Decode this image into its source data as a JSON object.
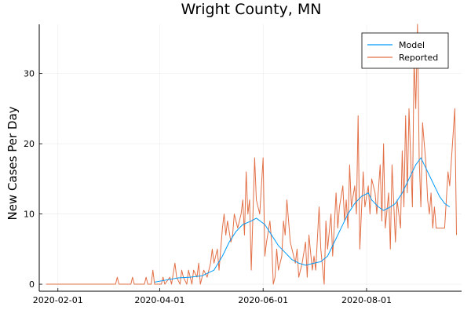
{
  "chart_data": {
    "type": "line",
    "title": "Wright County, MN",
    "xlabel": "",
    "ylabel": "New Cases Per Day",
    "xlim": [
      "2020-01-21",
      "2020-09-26"
    ],
    "ylim": [
      -1,
      37
    ],
    "x_ticks": [
      "2020-02-01",
      "2020-04-01",
      "2020-06-01",
      "2020-08-01"
    ],
    "y_ticks": [
      0,
      10,
      20,
      30
    ],
    "grid": true,
    "legend_position": "top-right",
    "series": [
      {
        "name": "Model",
        "color": "#009AF9",
        "points": [
          [
            "2020-03-29",
            0.3
          ],
          [
            "2020-04-05",
            0.6
          ],
          [
            "2020-04-12",
            0.9
          ],
          [
            "2020-04-19",
            1.0
          ],
          [
            "2020-04-26",
            1.2
          ],
          [
            "2020-05-03",
            2.0
          ],
          [
            "2020-05-08",
            4.0
          ],
          [
            "2020-05-12",
            6.0
          ],
          [
            "2020-05-16",
            7.5
          ],
          [
            "2020-05-20",
            8.5
          ],
          [
            "2020-05-25",
            9.0
          ],
          [
            "2020-05-28",
            9.4
          ],
          [
            "2020-06-02",
            8.5
          ],
          [
            "2020-06-06",
            7.0
          ],
          [
            "2020-06-10",
            5.5
          ],
          [
            "2020-06-14",
            4.5
          ],
          [
            "2020-06-18",
            3.5
          ],
          [
            "2020-06-22",
            3.0
          ],
          [
            "2020-06-26",
            2.7
          ],
          [
            "2020-07-01",
            3.0
          ],
          [
            "2020-07-05",
            3.2
          ],
          [
            "2020-07-09",
            4.0
          ],
          [
            "2020-07-13",
            6.0
          ],
          [
            "2020-07-17",
            8.0
          ],
          [
            "2020-07-21",
            10.0
          ],
          [
            "2020-07-25",
            11.5
          ],
          [
            "2020-07-29",
            12.5
          ],
          [
            "2020-08-02",
            13.0
          ],
          [
            "2020-08-04",
            12.0
          ],
          [
            "2020-08-08",
            11.0
          ],
          [
            "2020-08-11",
            10.5
          ],
          [
            "2020-08-15",
            11.0
          ],
          [
            "2020-08-18",
            11.5
          ],
          [
            "2020-08-22",
            13.0
          ],
          [
            "2020-08-26",
            15.0
          ],
          [
            "2020-08-30",
            17.0
          ],
          [
            "2020-09-02",
            18.0
          ],
          [
            "2020-09-04",
            17.0
          ],
          [
            "2020-09-07",
            15.5
          ],
          [
            "2020-09-10",
            14.0
          ],
          [
            "2020-09-13",
            12.5
          ],
          [
            "2020-09-16",
            11.5
          ],
          [
            "2020-09-19",
            11.0
          ]
        ]
      },
      {
        "name": "Reported",
        "color": "#E26F46",
        "points": [
          [
            "2020-01-25",
            0
          ],
          [
            "2020-03-06",
            0
          ],
          [
            "2020-03-07",
            1
          ],
          [
            "2020-03-08",
            0
          ],
          [
            "2020-03-15",
            0
          ],
          [
            "2020-03-16",
            1
          ],
          [
            "2020-03-17",
            0
          ],
          [
            "2020-03-23",
            0
          ],
          [
            "2020-03-24",
            1
          ],
          [
            "2020-03-25",
            0
          ],
          [
            "2020-03-27",
            0
          ],
          [
            "2020-03-28",
            2
          ],
          [
            "2020-03-29",
            0
          ],
          [
            "2020-04-02",
            0
          ],
          [
            "2020-04-03",
            1
          ],
          [
            "2020-04-04",
            0
          ],
          [
            "2020-04-07",
            1
          ],
          [
            "2020-04-08",
            0
          ],
          [
            "2020-04-10",
            3
          ],
          [
            "2020-04-11",
            1
          ],
          [
            "2020-04-13",
            0
          ],
          [
            "2020-04-14",
            2
          ],
          [
            "2020-04-15",
            1
          ],
          [
            "2020-04-17",
            0
          ],
          [
            "2020-04-18",
            2
          ],
          [
            "2020-04-20",
            0
          ],
          [
            "2020-04-21",
            2
          ],
          [
            "2020-04-23",
            1
          ],
          [
            "2020-04-24",
            3
          ],
          [
            "2020-04-25",
            0
          ],
          [
            "2020-04-27",
            2
          ],
          [
            "2020-04-29",
            1
          ],
          [
            "2020-05-01",
            3
          ],
          [
            "2020-05-02",
            5
          ],
          [
            "2020-05-03",
            3
          ],
          [
            "2020-05-05",
            5
          ],
          [
            "2020-05-06",
            2
          ],
          [
            "2020-05-08",
            8
          ],
          [
            "2020-05-09",
            10
          ],
          [
            "2020-05-10",
            7
          ],
          [
            "2020-05-11",
            9
          ],
          [
            "2020-05-13",
            6
          ],
          [
            "2020-05-14",
            7
          ],
          [
            "2020-05-15",
            10
          ],
          [
            "2020-05-17",
            8
          ],
          [
            "2020-05-19",
            10
          ],
          [
            "2020-05-20",
            12
          ],
          [
            "2020-05-21",
            7
          ],
          [
            "2020-05-22",
            16
          ],
          [
            "2020-05-23",
            10
          ],
          [
            "2020-05-24",
            12
          ],
          [
            "2020-05-25",
            2
          ],
          [
            "2020-05-27",
            18
          ],
          [
            "2020-05-28",
            12
          ],
          [
            "2020-05-30",
            10
          ],
          [
            "2020-05-31",
            14
          ],
          [
            "2020-06-01",
            18
          ],
          [
            "2020-06-02",
            4
          ],
          [
            "2020-06-03",
            6
          ],
          [
            "2020-06-05",
            9
          ],
          [
            "2020-06-06",
            6
          ],
          [
            "2020-06-07",
            0
          ],
          [
            "2020-06-08",
            1
          ],
          [
            "2020-06-09",
            5
          ],
          [
            "2020-06-10",
            2
          ],
          [
            "2020-06-12",
            4
          ],
          [
            "2020-06-13",
            9
          ],
          [
            "2020-06-14",
            7
          ],
          [
            "2020-06-15",
            12
          ],
          [
            "2020-06-17",
            6
          ],
          [
            "2020-06-18",
            5
          ],
          [
            "2020-06-20",
            3
          ],
          [
            "2020-06-21",
            5
          ],
          [
            "2020-06-22",
            1
          ],
          [
            "2020-06-24",
            3
          ],
          [
            "2020-06-26",
            6
          ],
          [
            "2020-06-27",
            1
          ],
          [
            "2020-06-28",
            7
          ],
          [
            "2020-06-30",
            2
          ],
          [
            "2020-07-01",
            4
          ],
          [
            "2020-07-02",
            2
          ],
          [
            "2020-07-04",
            11
          ],
          [
            "2020-07-05",
            5
          ],
          [
            "2020-07-07",
            0
          ],
          [
            "2020-07-08",
            9
          ],
          [
            "2020-07-09",
            5
          ],
          [
            "2020-07-11",
            10
          ],
          [
            "2020-07-12",
            4
          ],
          [
            "2020-07-14",
            13
          ],
          [
            "2020-07-15",
            8
          ],
          [
            "2020-07-16",
            11
          ],
          [
            "2020-07-18",
            14
          ],
          [
            "2020-07-19",
            9
          ],
          [
            "2020-07-20",
            12
          ],
          [
            "2020-07-21",
            8
          ],
          [
            "2020-07-22",
            17
          ],
          [
            "2020-07-23",
            11
          ],
          [
            "2020-07-25",
            14
          ],
          [
            "2020-07-26",
            10
          ],
          [
            "2020-07-27",
            24
          ],
          [
            "2020-07-28",
            5
          ],
          [
            "2020-07-30",
            16
          ],
          [
            "2020-07-31",
            11
          ],
          [
            "2020-08-02",
            14
          ],
          [
            "2020-08-03",
            10
          ],
          [
            "2020-08-04",
            15
          ],
          [
            "2020-08-06",
            13
          ],
          [
            "2020-08-07",
            10
          ],
          [
            "2020-08-09",
            17
          ],
          [
            "2020-08-10",
            9
          ],
          [
            "2020-08-11",
            20
          ],
          [
            "2020-08-12",
            8
          ],
          [
            "2020-08-14",
            13
          ],
          [
            "2020-08-15",
            5
          ],
          [
            "2020-08-16",
            17
          ],
          [
            "2020-08-18",
            6
          ],
          [
            "2020-08-19",
            12
          ],
          [
            "2020-08-21",
            8
          ],
          [
            "2020-08-22",
            19
          ],
          [
            "2020-08-23",
            11
          ],
          [
            "2020-08-24",
            24
          ],
          [
            "2020-08-25",
            13
          ],
          [
            "2020-08-26",
            25
          ],
          [
            "2020-08-27",
            18
          ],
          [
            "2020-08-28",
            11
          ],
          [
            "2020-08-29",
            32
          ],
          [
            "2020-08-30",
            25
          ],
          [
            "2020-08-31",
            37
          ],
          [
            "2020-09-01",
            18
          ],
          [
            "2020-09-02",
            11
          ],
          [
            "2020-09-03",
            23
          ],
          [
            "2020-09-04",
            20
          ],
          [
            "2020-09-05",
            17
          ],
          [
            "2020-09-06",
            12
          ],
          [
            "2020-09-07",
            10
          ],
          [
            "2020-09-08",
            13
          ],
          [
            "2020-09-09",
            8
          ],
          [
            "2020-09-10",
            11
          ],
          [
            "2020-09-11",
            8
          ],
          [
            "2020-09-16",
            8
          ],
          [
            "2020-09-18",
            16
          ],
          [
            "2020-09-19",
            14
          ],
          [
            "2020-09-22",
            25
          ],
          [
            "2020-09-23",
            7
          ]
        ]
      }
    ]
  }
}
